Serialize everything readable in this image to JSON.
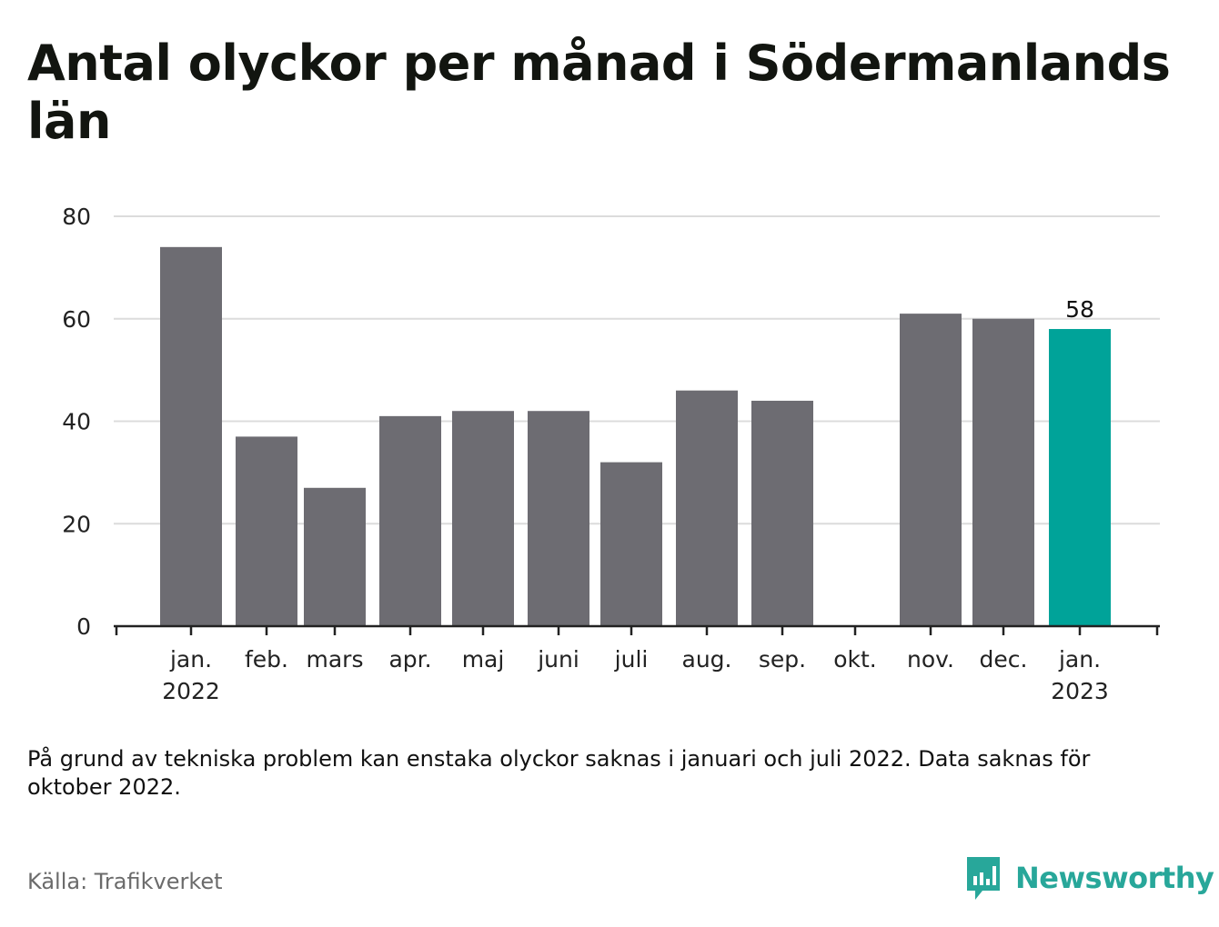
{
  "title": "Antal olyckor per månad i Södermanlands län",
  "note": "På grund av tekniska problem kan enstaka olyckor saknas i januari och juli 2022. Data saknas för oktober 2022.",
  "source": "Källa: Trafikverket",
  "brand": "Newsworthy",
  "colors": {
    "bar": "#6d6c72",
    "highlight": "#00a399",
    "grid": "#dcdcdc",
    "axis": "#222222",
    "brand": "#28a79a"
  },
  "chart_data": {
    "type": "bar",
    "categories": [
      "jan. 2022",
      "feb.",
      "mars",
      "apr.",
      "maj",
      "juni",
      "juli",
      "aug.",
      "sep.",
      "okt.",
      "nov.",
      "dec.",
      "jan. 2023"
    ],
    "tick_labels": [
      [
        "jan.",
        "2022"
      ],
      [
        "feb."
      ],
      [
        "mars"
      ],
      [
        "apr."
      ],
      [
        "maj"
      ],
      [
        "juni"
      ],
      [
        "juli"
      ],
      [
        "aug."
      ],
      [
        "sep."
      ],
      [
        "okt."
      ],
      [
        "nov."
      ],
      [
        "dec."
      ],
      [
        "jan.",
        "2023"
      ]
    ],
    "values": [
      74,
      37,
      27,
      41,
      42,
      42,
      32,
      46,
      44,
      null,
      61,
      60,
      58
    ],
    "highlight_index": 12,
    "data_labels": [
      {
        "index": 12,
        "text": "58"
      }
    ],
    "ylim": [
      0,
      80
    ],
    "yticks": [
      0,
      20,
      40,
      60,
      80
    ],
    "grid": true,
    "xlabel": "",
    "ylabel": ""
  }
}
